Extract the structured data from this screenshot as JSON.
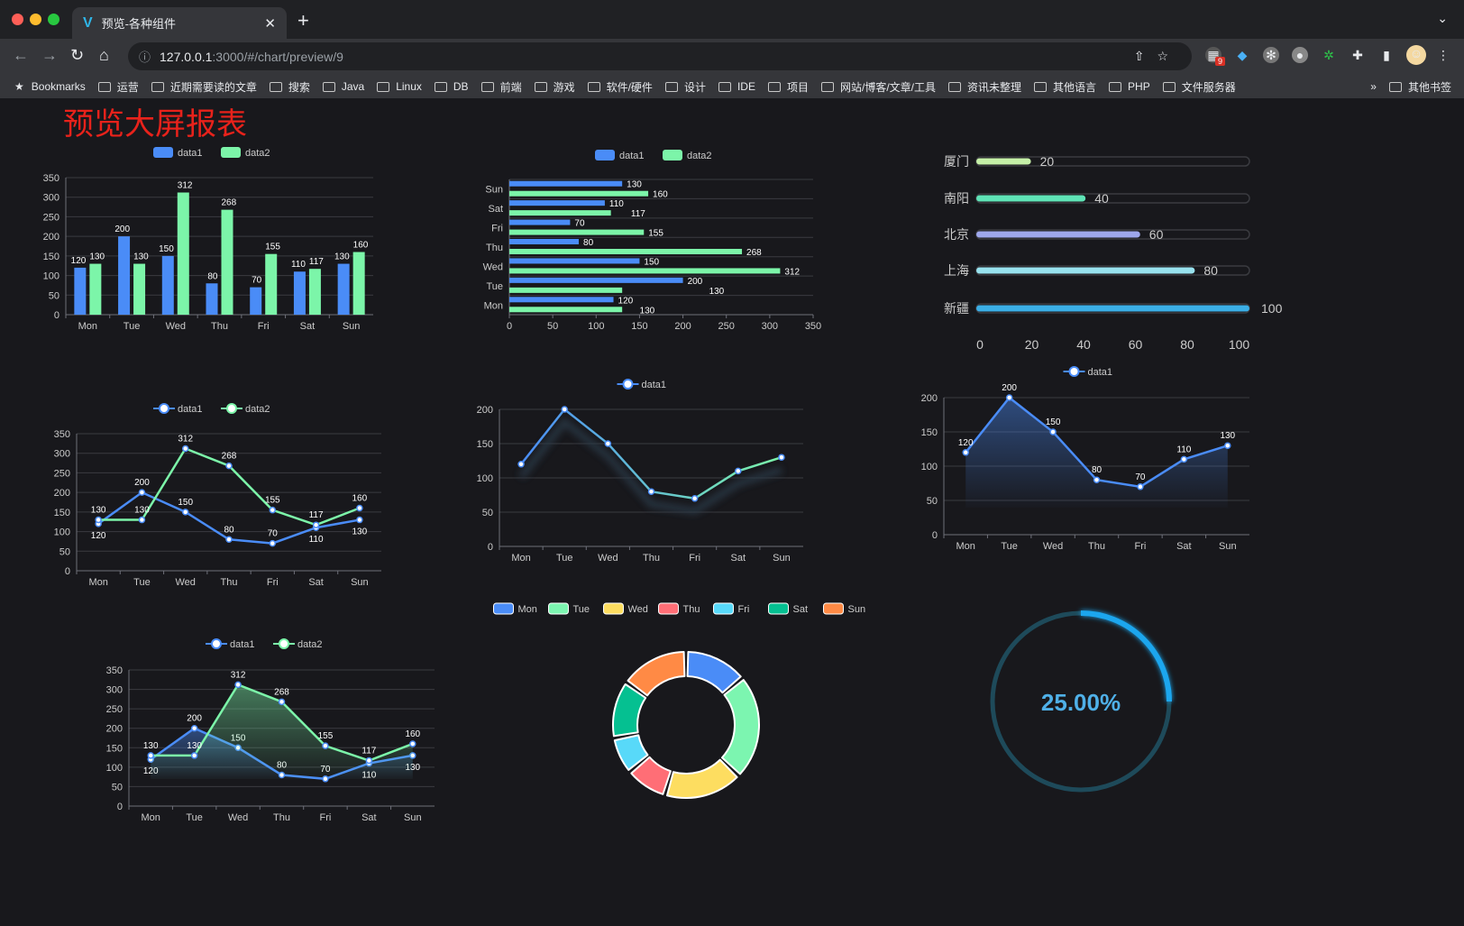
{
  "browser": {
    "tab_title": "预览-各种组件",
    "url_host": "127.0.0.1",
    "url_rest": ":3000/#/chart/preview/9",
    "extension_badge": "9",
    "bookmarks": [
      "Bookmarks",
      "运营",
      "近期需要读的文章",
      "搜索",
      "Java",
      "Linux",
      "DB",
      "前端",
      "游戏",
      "软件/硬件",
      "设计",
      "IDE",
      "项目",
      "网站/博客/文章/工具",
      "资讯未整理",
      "其他语言",
      "PHP",
      "文件服务器"
    ],
    "more": "»",
    "other_bookmarks": "其他书签"
  },
  "page": {
    "title": "预览大屏报表",
    "title_color": "#e8221b",
    "background": "#18181c"
  },
  "colors": {
    "data1": "#4a8cf7",
    "data2": "#7cf5a9",
    "axis": "#6e7079",
    "text": "#cccccc"
  },
  "chart_data": [
    {
      "id": "bar",
      "type": "bar",
      "categories": [
        "Mon",
        "Tue",
        "Wed",
        "Thu",
        "Fri",
        "Sat",
        "Sun"
      ],
      "series": [
        {
          "name": "data1",
          "values": [
            120,
            200,
            150,
            80,
            70,
            110,
            130
          ]
        },
        {
          "name": "data2",
          "values": [
            130,
            130,
            312,
            268,
            155,
            117,
            160
          ]
        }
      ],
      "ylim": [
        0,
        350
      ],
      "yticks": [
        0,
        50,
        100,
        150,
        200,
        250,
        300,
        350
      ],
      "legend": "top"
    },
    {
      "id": "hbar",
      "type": "bar",
      "orientation": "horizontal",
      "categories": [
        "Mon",
        "Tue",
        "Wed",
        "Thu",
        "Fri",
        "Sat",
        "Sun"
      ],
      "series": [
        {
          "name": "data1",
          "values": [
            120,
            200,
            150,
            80,
            70,
            110,
            130
          ]
        },
        {
          "name": "data2",
          "values": [
            130,
            130,
            312,
            268,
            155,
            117,
            160
          ]
        }
      ],
      "xlim": [
        0,
        350
      ],
      "xticks": [
        0,
        50,
        100,
        150,
        200,
        250,
        300,
        350
      ],
      "legend": "top"
    },
    {
      "id": "progress",
      "type": "bar",
      "orientation": "horizontal",
      "categories": [
        "厦门",
        "南阳",
        "北京",
        "上海",
        "新疆"
      ],
      "values": [
        20,
        40,
        60,
        80,
        100
      ],
      "colors": [
        "#c6f0a8",
        "#5fe3b6",
        "#9ea7ec",
        "#98e2ee",
        "#3baee6"
      ],
      "xlim": [
        0,
        100
      ],
      "xticks": [
        0,
        20,
        40,
        60,
        80,
        100
      ]
    },
    {
      "id": "line2",
      "type": "line",
      "categories": [
        "Mon",
        "Tue",
        "Wed",
        "Thu",
        "Fri",
        "Sat",
        "Sun"
      ],
      "series": [
        {
          "name": "data1",
          "values": [
            120,
            200,
            150,
            80,
            70,
            110,
            130
          ]
        },
        {
          "name": "data2",
          "values": [
            130,
            130,
            312,
            268,
            155,
            117,
            160
          ]
        }
      ],
      "ylim": [
        0,
        350
      ],
      "yticks": [
        0,
        50,
        100,
        150,
        200,
        250,
        300,
        350
      ],
      "legend": "top"
    },
    {
      "id": "line1",
      "type": "line",
      "categories": [
        "Mon",
        "Tue",
        "Wed",
        "Thu",
        "Fri",
        "Sat",
        "Sun"
      ],
      "series": [
        {
          "name": "data1",
          "values": [
            120,
            200,
            150,
            80,
            70,
            110,
            130
          ]
        }
      ],
      "ylim": [
        0,
        200
      ],
      "yticks": [
        0,
        50,
        100,
        150,
        200
      ],
      "legend": "top",
      "gradient": [
        "#4a8cf7",
        "#7cf5a9"
      ]
    },
    {
      "id": "area1",
      "type": "area",
      "categories": [
        "Mon",
        "Tue",
        "Wed",
        "Thu",
        "Fri",
        "Sat",
        "Sun"
      ],
      "series": [
        {
          "name": "data1",
          "values": [
            120,
            200,
            150,
            80,
            70,
            110,
            130
          ]
        }
      ],
      "ylim": [
        0,
        200
      ],
      "yticks": [
        0,
        50,
        100,
        150,
        200
      ],
      "legend": "top"
    },
    {
      "id": "area2",
      "type": "area",
      "categories": [
        "Mon",
        "Tue",
        "Wed",
        "Thu",
        "Fri",
        "Sat",
        "Sun"
      ],
      "series": [
        {
          "name": "data1",
          "values": [
            120,
            200,
            150,
            80,
            70,
            110,
            130
          ]
        },
        {
          "name": "data2",
          "values": [
            130,
            130,
            312,
            268,
            155,
            117,
            160
          ]
        }
      ],
      "ylim": [
        0,
        350
      ],
      "yticks": [
        0,
        50,
        100,
        150,
        200,
        250,
        300,
        350
      ],
      "legend": "top"
    },
    {
      "id": "donut",
      "type": "pie",
      "categories": [
        "Mon",
        "Tue",
        "Wed",
        "Thu",
        "Fri",
        "Sat",
        "Sun"
      ],
      "values": [
        120,
        200,
        150,
        80,
        70,
        110,
        130
      ],
      "colors": [
        "#4a8cf7",
        "#7cf5b0",
        "#fddd60",
        "#ff6e76",
        "#58d9f9",
        "#05c091",
        "#ff8a45"
      ],
      "legend": "top"
    },
    {
      "id": "gauge",
      "type": "gauge",
      "value": 25,
      "label": "25.00%",
      "color": "#1aa6ee",
      "track": "#1e4a5a"
    }
  ]
}
